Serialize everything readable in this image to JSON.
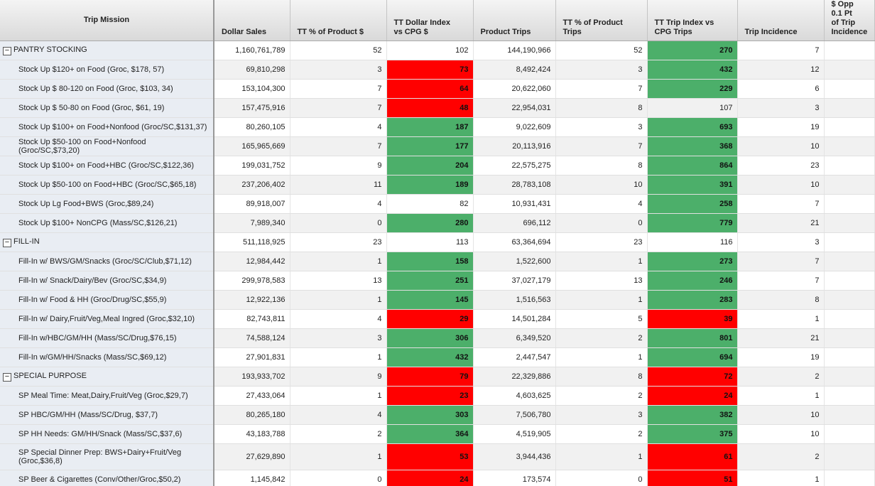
{
  "table": {
    "columns": [
      "Trip Mission",
      "Dollar Sales",
      "TT % of Product $",
      "TT Dollar Index vs CPG $",
      "Product Trips",
      "TT % of Product Trips",
      "TT Trip Index vs CPG Trips",
      "Trip Incidence",
      "$ Opp 0.1 Pt of Trip Incidence"
    ],
    "high_color": "#4caf6a",
    "low_color": "#ff0000",
    "rows": [
      {
        "group": true,
        "cells": [
          "PANTRY STOCKING",
          "1,160,761,789",
          "52",
          "102",
          "144,190,966",
          "52",
          "270",
          "7"
        ],
        "index_colors": [
          null,
          "high"
        ]
      },
      {
        "group": false,
        "cells": [
          "Stock Up $120+ on Food (Groc, $178, 57)",
          "69,810,298",
          "3",
          "73",
          "8,492,424",
          "3",
          "432",
          "12"
        ],
        "index_colors": [
          "low",
          "high"
        ]
      },
      {
        "group": false,
        "cells": [
          "Stock Up $ 80-120 on Food (Groc, $103, 34)",
          "153,104,300",
          "7",
          "64",
          "20,622,060",
          "7",
          "229",
          "6"
        ],
        "index_colors": [
          "low",
          "high"
        ]
      },
      {
        "group": false,
        "cells": [
          "Stock Up $ 50-80 on Food (Groc, $61, 19)",
          "157,475,916",
          "7",
          "48",
          "22,954,031",
          "8",
          "107",
          "3"
        ],
        "index_colors": [
          "low",
          null
        ]
      },
      {
        "group": false,
        "cells": [
          "Stock Up $100+ on Food+Nonfood (Groc/SC,$131,37)",
          "80,260,105",
          "4",
          "187",
          "9,022,609",
          "3",
          "693",
          "19"
        ],
        "index_colors": [
          "high",
          "high"
        ]
      },
      {
        "group": false,
        "cells": [
          "Stock Up $50-100 on Food+Nonfood (Groc/SC,$73,20)",
          "165,965,669",
          "7",
          "177",
          "20,113,916",
          "7",
          "368",
          "10"
        ],
        "index_colors": [
          "high",
          "high"
        ]
      },
      {
        "group": false,
        "cells": [
          "Stock Up $100+ on Food+HBC (Groc/SC,$122,36)",
          "199,031,752",
          "9",
          "204",
          "22,575,275",
          "8",
          "864",
          "23"
        ],
        "index_colors": [
          "high",
          "high"
        ]
      },
      {
        "group": false,
        "cells": [
          "Stock Up $50-100 on Food+HBC (Groc/SC,$65,18)",
          "237,206,402",
          "11",
          "189",
          "28,783,108",
          "10",
          "391",
          "10"
        ],
        "index_colors": [
          "high",
          "high"
        ]
      },
      {
        "group": false,
        "cells": [
          "Stock Up Lg Food+BWS (Groc,$89,24)",
          "89,918,007",
          "4",
          "82",
          "10,931,431",
          "4",
          "258",
          "7"
        ],
        "index_colors": [
          null,
          "high"
        ]
      },
      {
        "group": false,
        "cells": [
          "Stock Up $100+ NonCPG (Mass/SC,$126,21)",
          "7,989,340",
          "0",
          "280",
          "696,112",
          "0",
          "779",
          "21"
        ],
        "index_colors": [
          "high",
          "high"
        ]
      },
      {
        "group": true,
        "cells": [
          "FILL-IN",
          "511,118,925",
          "23",
          "113",
          "63,364,694",
          "23",
          "116",
          "3"
        ],
        "index_colors": [
          null,
          null
        ]
      },
      {
        "group": false,
        "cells": [
          "Fill-In w/ BWS/GM/Snacks (Groc/SC/Club,$71,12)",
          "12,984,442",
          "1",
          "158",
          "1,522,600",
          "1",
          "273",
          "7"
        ],
        "index_colors": [
          "high",
          "high"
        ]
      },
      {
        "group": false,
        "cells": [
          "Fill-In w/ Snack/Dairy/Bev (Groc/SC,$34,9)",
          "299,978,583",
          "13",
          "251",
          "37,027,179",
          "13",
          "246",
          "7"
        ],
        "index_colors": [
          "high",
          "high"
        ]
      },
      {
        "group": false,
        "cells": [
          "Fill-In w/ Food & HH (Groc/Drug/SC,$55,9)",
          "12,922,136",
          "1",
          "145",
          "1,516,563",
          "1",
          "283",
          "8"
        ],
        "index_colors": [
          "high",
          "high"
        ]
      },
      {
        "group": false,
        "cells": [
          "Fill-In w/ Dairy,Fruit/Veg,Meal Ingred (Groc,$32,10)",
          "82,743,811",
          "4",
          "29",
          "14,501,284",
          "5",
          "39",
          "1"
        ],
        "index_colors": [
          "low",
          "low"
        ]
      },
      {
        "group": false,
        "cells": [
          "Fill-In w/HBC/GM/HH (Mass/SC/Drug,$76,15)",
          "74,588,124",
          "3",
          "306",
          "6,349,520",
          "2",
          "801",
          "21"
        ],
        "index_colors": [
          "high",
          "high"
        ]
      },
      {
        "group": false,
        "cells": [
          "Fill-In w/GM/HH/Snacks (Mass/SC,$69,12)",
          "27,901,831",
          "1",
          "432",
          "2,447,547",
          "1",
          "694",
          "19"
        ],
        "index_colors": [
          "high",
          "high"
        ]
      },
      {
        "group": true,
        "cells": [
          "SPECIAL PURPOSE",
          "193,933,702",
          "9",
          "79",
          "22,329,886",
          "8",
          "72",
          "2"
        ],
        "index_colors": [
          "low",
          "low"
        ]
      },
      {
        "group": false,
        "cells": [
          "SP Meal Time: Meat,Dairy,Fruit/Veg (Groc,$29,7)",
          "27,433,064",
          "1",
          "23",
          "4,603,625",
          "2",
          "24",
          "1"
        ],
        "index_colors": [
          "low",
          "low"
        ]
      },
      {
        "group": false,
        "cells": [
          "SP HBC/GM/HH (Mass/SC/Drug, $37,7)",
          "80,265,180",
          "4",
          "303",
          "7,506,780",
          "3",
          "382",
          "10"
        ],
        "index_colors": [
          "high",
          "high"
        ]
      },
      {
        "group": false,
        "cells": [
          "SP HH Needs: GM/HH/Snack (Mass/SC,$37,6)",
          "43,183,788",
          "2",
          "364",
          "4,519,905",
          "2",
          "375",
          "10"
        ],
        "index_colors": [
          "high",
          "high"
        ]
      },
      {
        "group": false,
        "cells": [
          "SP Special Dinner Prep: BWS+Dairy+Fruit/Veg (Groc,$36,8)",
          "27,629,890",
          "1",
          "53",
          "3,944,436",
          "1",
          "61",
          "2"
        ],
        "index_colors": [
          "low",
          "low"
        ]
      },
      {
        "group": false,
        "cells": [
          "SP Beer & Cigarettes (Conv/Other/Groc,$50,2)",
          "1,145,842",
          "0",
          "24",
          "173,574",
          "0",
          "51",
          "1"
        ],
        "index_colors": [
          "low",
          "low"
        ]
      }
    ]
  }
}
